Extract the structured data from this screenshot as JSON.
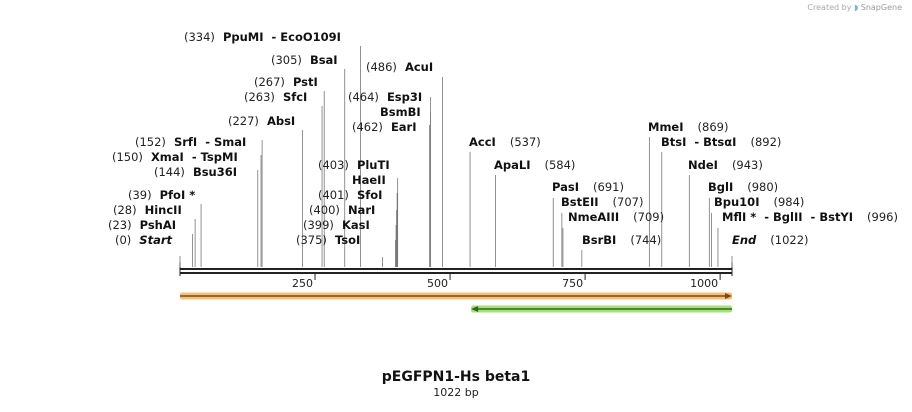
{
  "credit": {
    "created_by": "Created by",
    "brand": "SnapGene"
  },
  "plasmid": {
    "name": "pEGFPN1-Hs beta1",
    "length_label": "1022 bp",
    "length": 1022
  },
  "ruler": {
    "ticks": [
      250,
      500,
      750,
      1000
    ]
  },
  "features": [
    {
      "name": "orange-feature",
      "start": 1,
      "end": 1022,
      "strand": "forward",
      "color": "#f2c27a",
      "core": "#7a4a1a"
    },
    {
      "name": "green-feature",
      "start": 540,
      "end": 1022,
      "strand": "reverse",
      "color": "#a6e07a",
      "core": "#2e6a1a"
    }
  ],
  "sites": [
    {
      "id": "start",
      "pos_label": "(0)",
      "parts": [
        "Start"
      ],
      "italic": true,
      "site": 0
    },
    {
      "id": "pshai",
      "pos_label": "(23)",
      "parts": [
        "PshAI"
      ],
      "site": 23
    },
    {
      "id": "hincii",
      "pos_label": "(28)",
      "parts": [
        "HincII"
      ],
      "site": 28
    },
    {
      "id": "pfoi",
      "pos_label": "(39)",
      "parts": [
        "PfoI *"
      ],
      "site": 39
    },
    {
      "id": "bsu36i",
      "pos_label": "(144)",
      "parts": [
        "Bsu36I"
      ],
      "site": 144
    },
    {
      "id": "xmai",
      "pos_label": "(150)",
      "parts": [
        "XmaI",
        " - TspMI"
      ],
      "site": 150
    },
    {
      "id": "srfi",
      "pos_label": "(152)",
      "parts": [
        "SrfI",
        " - SmaI"
      ],
      "site": 152
    },
    {
      "id": "absi",
      "pos_label": "(227)",
      "parts": [
        "AbsI"
      ],
      "site": 227
    },
    {
      "id": "sfci",
      "pos_label": "(263)",
      "parts": [
        "SfcI"
      ],
      "site": 263
    },
    {
      "id": "psti",
      "pos_label": "(267)",
      "parts": [
        "PstI"
      ],
      "site": 267
    },
    {
      "id": "bsai",
      "pos_label": "(305)",
      "parts": [
        "BsaI"
      ],
      "site": 305
    },
    {
      "id": "ppumi",
      "pos_label": "(334)",
      "parts": [
        "PpuMI",
        " - EcoO109I"
      ],
      "site": 334
    },
    {
      "id": "tsoi",
      "pos_label": "(375)",
      "parts": [
        "TsoI"
      ],
      "site": 375
    },
    {
      "id": "kasi",
      "pos_label": "(399)",
      "parts": [
        "KasI"
      ],
      "site": 399
    },
    {
      "id": "nari",
      "pos_label": "(400)",
      "parts": [
        "NarI"
      ],
      "site": 400
    },
    {
      "id": "sfoi",
      "pos_label": "(401)",
      "parts": [
        "SfoI"
      ],
      "site": 401
    },
    {
      "id": "haeii",
      "pos_label": "",
      "parts": [
        "HaeII"
      ],
      "site": 402
    },
    {
      "id": "pluti",
      "pos_label": "(403)",
      "parts": [
        "PluTI"
      ],
      "site": 403
    },
    {
      "id": "eari",
      "pos_label": "(462)",
      "parts": [
        "EarI"
      ],
      "site": 462
    },
    {
      "id": "bsmbi",
      "pos_label": "",
      "parts": [
        "BsmBI"
      ],
      "site": 464
    },
    {
      "id": "esp3i",
      "pos_label": "(464)",
      "parts": [
        "Esp3I"
      ],
      "site": 464
    },
    {
      "id": "acui",
      "pos_label": "(486)",
      "parts": [
        "AcuI"
      ],
      "site": 486
    },
    {
      "id": "acci",
      "pos_label": "(537)",
      "parts": [
        "AccI"
      ],
      "site": 537
    },
    {
      "id": "apali",
      "pos_label": "(584)",
      "parts": [
        "ApaLI"
      ],
      "site": 584
    },
    {
      "id": "pasi",
      "pos_label": "(691)",
      "parts": [
        "PasI"
      ],
      "site": 691
    },
    {
      "id": "bsteii",
      "pos_label": "(707)",
      "parts": [
        "BstEII"
      ],
      "site": 707
    },
    {
      "id": "nmeaiii",
      "pos_label": "(709)",
      "parts": [
        "NmeAIII"
      ],
      "site": 709
    },
    {
      "id": "bsrbi",
      "pos_label": "(744)",
      "parts": [
        "BsrBI"
      ],
      "site": 744
    },
    {
      "id": "btsi",
      "pos_label": "(892)",
      "parts": [
        "BtsI",
        " - BtsαI"
      ],
      "site": 892
    },
    {
      "id": "mmei",
      "pos_label": "(869)",
      "parts": [
        "MmeI"
      ],
      "site": 869
    },
    {
      "id": "ndei",
      "pos_label": "(943)",
      "parts": [
        "NdeI"
      ],
      "site": 943
    },
    {
      "id": "bgli",
      "pos_label": "(980)",
      "parts": [
        "BglI"
      ],
      "site": 980
    },
    {
      "id": "bpu10i",
      "pos_label": "(984)",
      "parts": [
        "Bpu10I"
      ],
      "site": 984
    },
    {
      "id": "mfli",
      "pos_label": "(996)",
      "parts": [
        "MflI *",
        " - BglII",
        " - BstYI"
      ],
      "site": 996
    },
    {
      "id": "end",
      "pos_label": "(1022)",
      "parts": [
        "End"
      ],
      "italic": true,
      "site": 1022
    }
  ]
}
